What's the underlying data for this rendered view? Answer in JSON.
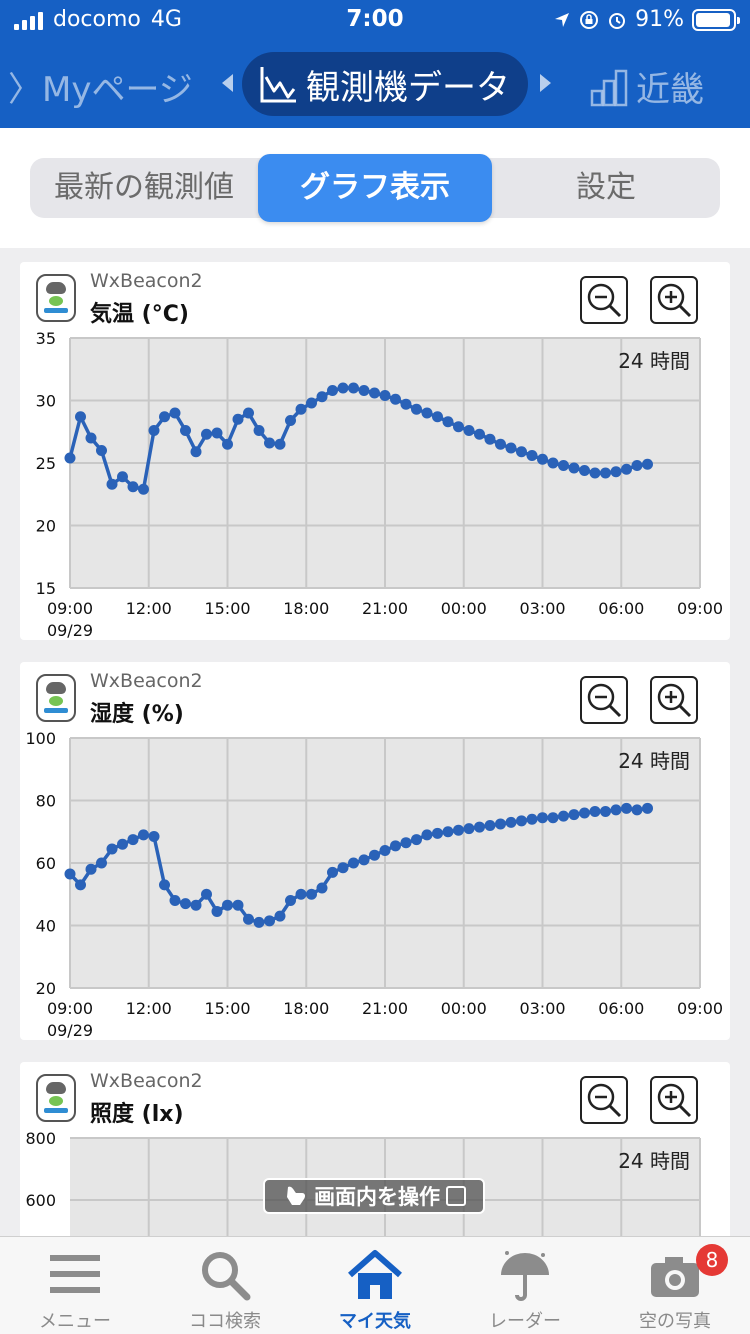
{
  "status": {
    "carrier": "docomo",
    "network": "4G",
    "time": "7:00",
    "battery": "91%"
  },
  "nav": {
    "left": "〉Myページ",
    "center": "観測機データ",
    "right": "近畿"
  },
  "segments": {
    "latest": "最新の観測値",
    "graph": "グラフ表示",
    "settings": "設定"
  },
  "cards": [
    {
      "device": "WxBeacon2",
      "metric": "気温 (°C)",
      "period": "24 時間",
      "y_ticks": [
        "35",
        "30",
        "25",
        "20",
        "15"
      ],
      "x_ticks": [
        "09:00",
        "12:00",
        "15:00",
        "18:00",
        "21:00",
        "00:00",
        "03:00",
        "06:00",
        "09:00"
      ],
      "x_date": "09/29"
    },
    {
      "device": "WxBeacon2",
      "metric": "湿度 (%)",
      "period": "24 時間",
      "y_ticks": [
        "100",
        "80",
        "60",
        "40",
        "20"
      ],
      "x_ticks": [
        "09:00",
        "12:00",
        "15:00",
        "18:00",
        "21:00",
        "00:00",
        "03:00",
        "06:00",
        "09:00"
      ],
      "x_date": "09/29"
    },
    {
      "device": "WxBeacon2",
      "metric": "照度 (lx)",
      "period": "24 時間",
      "y_ticks": [
        "800",
        "600"
      ]
    }
  ],
  "chart_data": [
    {
      "type": "line",
      "title": "気温 (°C)",
      "ylim": [
        15,
        35
      ],
      "xlim_hours": [
        0,
        24
      ],
      "x_hours": [
        0,
        0.4,
        0.8,
        1.2,
        1.6,
        2.0,
        2.4,
        2.8,
        3.2,
        3.6,
        4.0,
        4.4,
        4.8,
        5.2,
        5.6,
        6.0,
        6.4,
        6.8,
        7.2,
        7.6,
        8.0,
        8.4,
        8.8,
        9.2,
        9.6,
        10.0,
        10.4,
        10.8,
        11.2,
        11.6,
        12.0,
        12.4,
        12.8,
        13.2,
        13.6,
        14.0,
        14.4,
        14.8,
        15.2,
        15.6,
        16.0,
        16.4,
        16.8,
        17.2,
        17.6,
        18.0,
        18.4,
        18.8,
        19.2,
        19.6,
        20.0,
        20.4,
        20.8,
        21.2,
        21.6,
        22.0
      ],
      "y": [
        25.4,
        28.7,
        27.0,
        26.0,
        23.3,
        23.9,
        23.1,
        22.9,
        27.6,
        28.7,
        29.0,
        27.6,
        25.9,
        27.3,
        27.4,
        26.5,
        28.5,
        29.0,
        27.6,
        26.6,
        26.5,
        28.4,
        29.3,
        29.8,
        30.3,
        30.8,
        31.0,
        31.0,
        30.8,
        30.6,
        30.4,
        30.1,
        29.7,
        29.3,
        29.0,
        28.7,
        28.3,
        27.9,
        27.6,
        27.3,
        26.9,
        26.5,
        26.2,
        25.9,
        25.6,
        25.3,
        25.0,
        24.8,
        24.6,
        24.4,
        24.2,
        24.2,
        24.3,
        24.5,
        24.8,
        24.9
      ],
      "grid": true
    },
    {
      "type": "line",
      "title": "湿度 (%)",
      "ylim": [
        20,
        100
      ],
      "xlim_hours": [
        0,
        24
      ],
      "x_hours": [
        0,
        0.4,
        0.8,
        1.2,
        1.6,
        2.0,
        2.4,
        2.8,
        3.2,
        3.6,
        4.0,
        4.4,
        4.8,
        5.2,
        5.6,
        6.0,
        6.4,
        6.8,
        7.2,
        7.6,
        8.0,
        8.4,
        8.8,
        9.2,
        9.6,
        10.0,
        10.4,
        10.8,
        11.2,
        11.6,
        12.0,
        12.4,
        12.8,
        13.2,
        13.6,
        14.0,
        14.4,
        14.8,
        15.2,
        15.6,
        16.0,
        16.4,
        16.8,
        17.2,
        17.6,
        18.0,
        18.4,
        18.8,
        19.2,
        19.6,
        20.0,
        20.4,
        20.8,
        21.2,
        21.6,
        22.0
      ],
      "y": [
        56.5,
        53.0,
        58.0,
        60.0,
        64.5,
        66.0,
        67.5,
        69.0,
        68.5,
        53.0,
        48.0,
        47.0,
        46.5,
        50.0,
        44.5,
        46.5,
        46.5,
        42.0,
        41.0,
        41.5,
        43.0,
        48.0,
        50.0,
        50.0,
        52.0,
        57.0,
        58.5,
        60.0,
        61.0,
        62.5,
        64.0,
        65.5,
        66.5,
        67.5,
        69.0,
        69.5,
        70.0,
        70.5,
        71.0,
        71.5,
        72.0,
        72.5,
        73.0,
        73.5,
        74.0,
        74.5,
        74.5,
        75.0,
        75.5,
        76.0,
        76.5,
        76.5,
        77.0,
        77.5,
        77.0,
        77.5
      ],
      "grid": true
    }
  ],
  "overlay": {
    "label": "画面内を操作"
  },
  "tabs": [
    {
      "label": "メニュー",
      "icon": "menu-icon"
    },
    {
      "label": "ココ検索",
      "icon": "search-icon"
    },
    {
      "label": "マイ天気",
      "icon": "home-icon"
    },
    {
      "label": "レーダー",
      "icon": "umbrella-icon"
    },
    {
      "label": "空の写真",
      "icon": "camera-icon"
    }
  ],
  "badge": "8",
  "colors": {
    "header": "#1660c4",
    "accent": "#3b8cf0",
    "series": "#2a62b8",
    "plot_bg": "#e6e6e6"
  }
}
